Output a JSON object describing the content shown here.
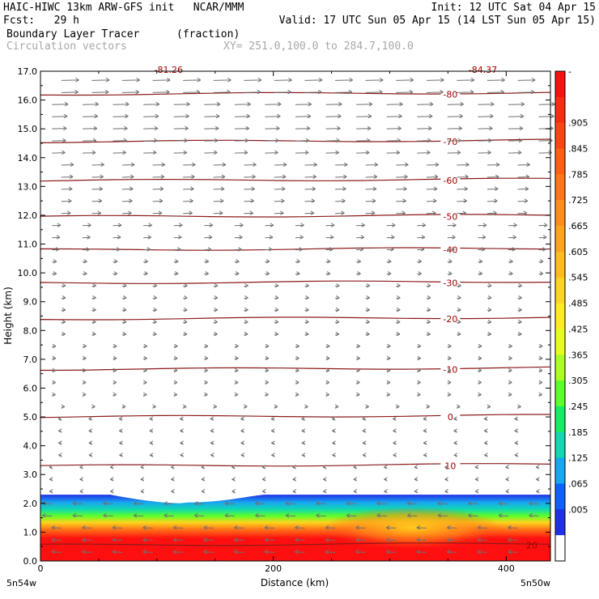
{
  "header": {
    "left_line1": "HAIC-HIWC 13km ARW-GFS init   NCAR/MMM",
    "left_line2": "Fcst:   29 h",
    "right_line1": "Init: 12 UTC Sat 04 Apr 15",
    "right_line2": "Valid: 17 UTC Sun 05 Apr 15 (14 LST Sun 05 Apr 15)",
    "field_name": "Boundary Layer Tracer",
    "field_units": "(fraction)",
    "vectors_label": "Circulation vectors",
    "xsec_coords": "XY= 251.0,100.0 to 284.7,100.0"
  },
  "chart_data": {
    "type": "heatmap",
    "title": "Boundary Layer Tracer",
    "xlabel": "Distance (km)",
    "ylabel": "Height (km)",
    "xlim": [
      0,
      438
    ],
    "ylim": [
      0,
      17
    ],
    "x_ticks": [
      0,
      200,
      400
    ],
    "y_ticks": [
      "0.0",
      "1.0",
      "2.0",
      "3.0",
      "4.0",
      "5.0",
      "6.0",
      "7.0",
      "8.0",
      "9.0",
      "10.0",
      "11.0",
      "12.0",
      "13.0",
      "14.0",
      "15.0",
      "16.0",
      "17.0"
    ],
    "x_end_labels": {
      "left": "5n54w",
      "right": "5n50w"
    },
    "colorbar": {
      "labels": [
        "-",
        ".905",
        ".845",
        ".785",
        ".725",
        ".665",
        ".605",
        ".545",
        ".485",
        ".425",
        ".365",
        ".305",
        ".245",
        ".185",
        ".125",
        ".065",
        ".005"
      ],
      "colors": [
        "#ff1010",
        "#ff2a12",
        "#ff4414",
        "#ff5e16",
        "#ff7618",
        "#ff8e1a",
        "#ffa41c",
        "#ffbc1c",
        "#ffd41c",
        "#ffec1a",
        "#e8ff1a",
        "#aaff1e",
        "#5cff2a",
        "#10f060",
        "#10d8b0",
        "#18a8f0",
        "#1060ff",
        "#2030e8",
        "#ffffff"
      ]
    },
    "temperature_contours": [
      {
        "label": "-80",
        "height_km": 16.2
      },
      {
        "label": "-70",
        "height_km": 14.55
      },
      {
        "label": "-60",
        "height_km": 13.2
      },
      {
        "label": "-50",
        "height_km": 11.95
      },
      {
        "label": "-40",
        "height_km": 10.8
      },
      {
        "label": "-30",
        "height_km": 9.65
      },
      {
        "label": "-20",
        "height_km": 8.4
      },
      {
        "label": "-10",
        "height_km": 6.65
      },
      {
        "label": "0",
        "height_km": 5.0
      },
      {
        "label": "10",
        "height_km": 3.3
      },
      {
        "label": "20",
        "height_km": 0.55
      }
    ],
    "top_contour_labels": [
      "-81.26",
      "-84.37"
    ],
    "tracer_layer": {
      "top_km": 2.3,
      "dip_km": 2.0,
      "dip_x_range_km": [
        60,
        190
      ]
    }
  }
}
